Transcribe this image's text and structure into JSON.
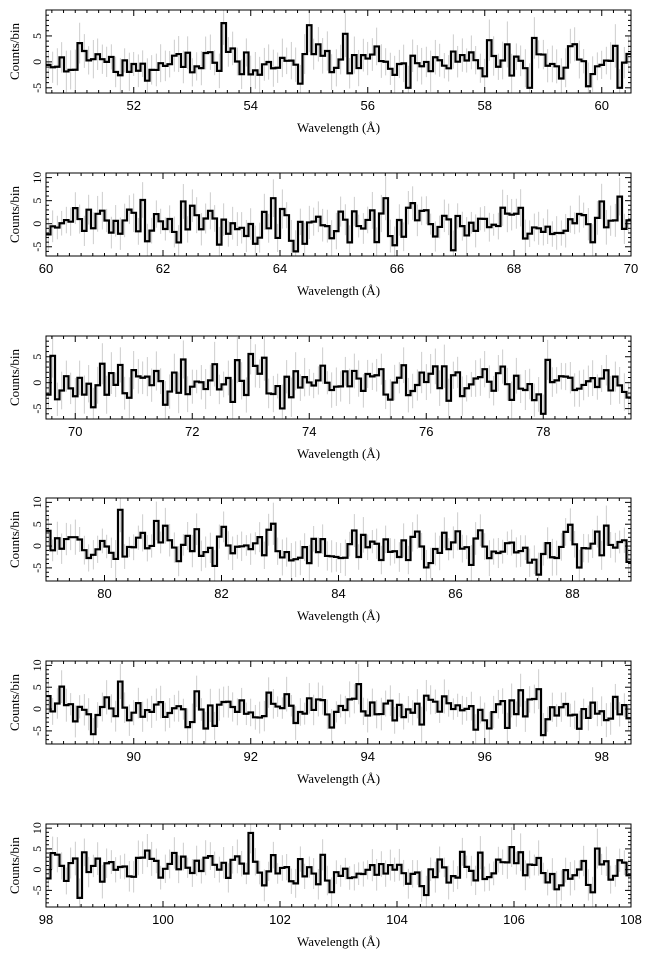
{
  "chart_data": [
    {
      "type": "line",
      "xlabel": "Wavelength (Å)",
      "ylabel": "Counts/bin",
      "xlim": [
        50.5,
        60.5
      ],
      "ylim": [
        -6,
        10
      ],
      "xticks": [
        52,
        54,
        56,
        58,
        60
      ],
      "yticks": [
        -5,
        0,
        5
      ],
      "seed": 11
    },
    {
      "type": "line",
      "xlabel": "Wavelength (Å)",
      "ylabel": "Counts/bin",
      "xlim": [
        60,
        70
      ],
      "ylim": [
        -7,
        11
      ],
      "xticks": [
        60,
        62,
        64,
        66,
        68,
        70
      ],
      "yticks": [
        -5,
        0,
        5,
        10
      ],
      "seed": 23
    },
    {
      "type": "line",
      "xlabel": "Wavelength (Å)",
      "ylabel": "Counts/bin",
      "xlim": [
        69.5,
        79.5
      ],
      "ylim": [
        -7,
        9
      ],
      "xticks": [
        70,
        72,
        74,
        76,
        78
      ],
      "yticks": [
        -5,
        0,
        5
      ],
      "seed": 37
    },
    {
      "type": "line",
      "xlabel": "Wavelength (Å)",
      "ylabel": "Counts/bin",
      "xlim": [
        79,
        89
      ],
      "ylim": [
        -8,
        11
      ],
      "xticks": [
        80,
        82,
        84,
        86,
        88
      ],
      "yticks": [
        -5,
        0,
        5,
        10
      ],
      "seed": 41
    },
    {
      "type": "line",
      "xlabel": "Wavelength (Å)",
      "ylabel": "Counts/bin",
      "xlim": [
        88.5,
        98.5
      ],
      "ylim": [
        -8,
        11
      ],
      "xticks": [
        90,
        92,
        94,
        96,
        98
      ],
      "yticks": [
        -5,
        0,
        5,
        10
      ],
      "seed": 53
    },
    {
      "type": "line",
      "xlabel": "Wavelength (Å)",
      "ylabel": "Counts/bin",
      "xlim": [
        98,
        108
      ],
      "ylim": [
        -9,
        11
      ],
      "xticks": [
        98,
        100,
        102,
        104,
        106,
        108
      ],
      "yticks": [
        -5,
        0,
        5,
        10
      ],
      "seed": 67
    }
  ]
}
